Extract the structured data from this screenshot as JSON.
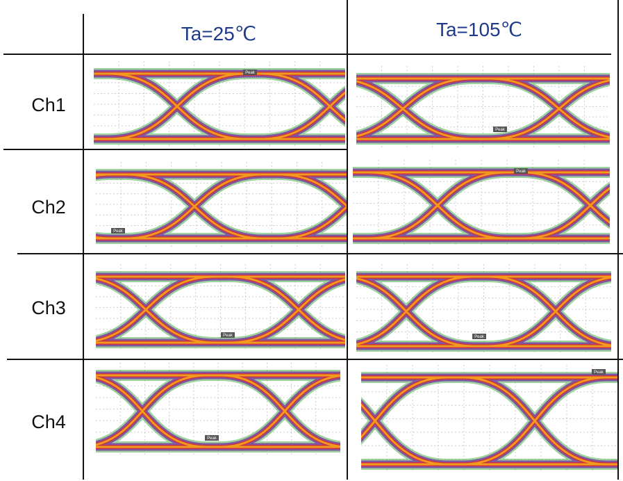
{
  "table": {
    "header": [
      "Ta=25℃",
      "Ta=105℃"
    ],
    "rows": [
      {
        "label": "Ch1",
        "markers": [
          "Peak",
          "Peak"
        ]
      },
      {
        "label": "Ch2",
        "markers": [
          "Peak",
          "Peak"
        ]
      },
      {
        "label": "Ch3",
        "markers": [
          "Peak",
          "Peak"
        ]
      },
      {
        "label": "Ch4",
        "markers": [
          "Peak",
          "Peak"
        ]
      }
    ]
  }
}
